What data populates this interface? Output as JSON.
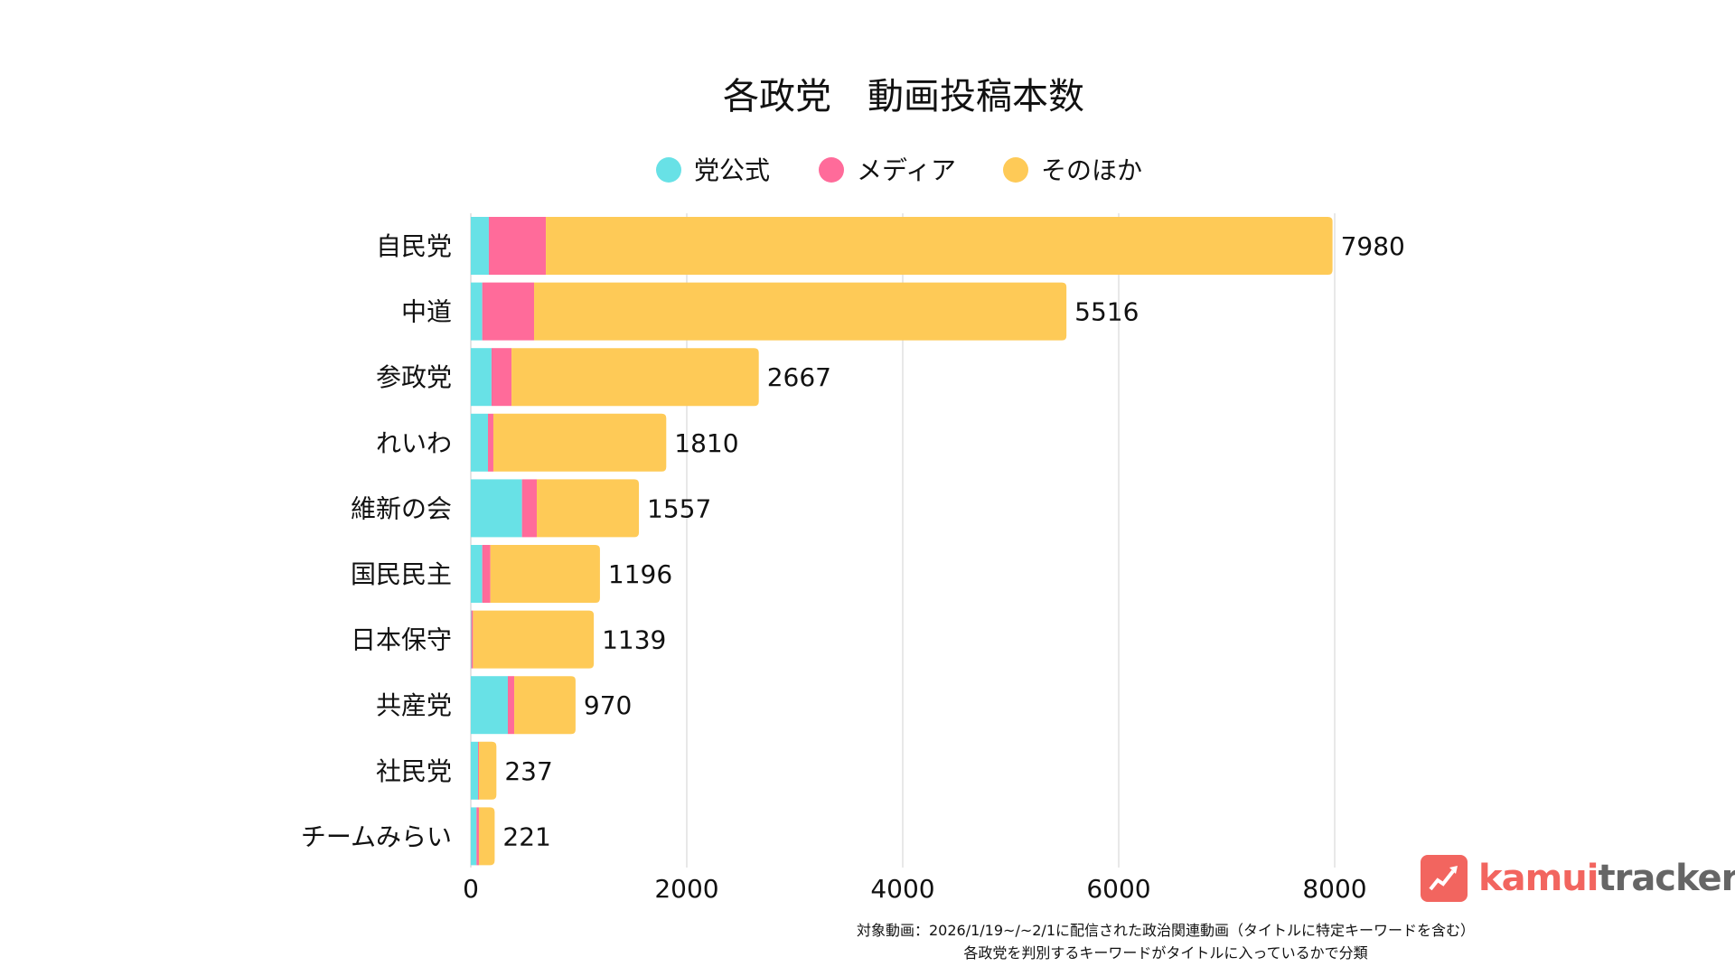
{
  "chart_data": {
    "type": "bar",
    "orientation": "horizontal",
    "stacked": true,
    "title": "各政党　動画投稿本数",
    "xlabel": "",
    "ylabel": "",
    "xlim": [
      0,
      8000
    ],
    "xticks": [
      0,
      2000,
      4000,
      6000,
      8000
    ],
    "grid": true,
    "legend_position": "top",
    "categories": [
      "自民党",
      "中道",
      "参政党",
      "れいわ",
      "維新の会",
      "国民民主",
      "日本保守",
      "共産党",
      "社民党",
      "チームみらい"
    ],
    "totals": [
      7980,
      5516,
      2667,
      1810,
      1557,
      1196,
      1139,
      970,
      237,
      221
    ],
    "series": [
      {
        "name": "党公式",
        "color": "#68E1E6",
        "values": [
          167,
          106,
          192,
          159,
          474,
          106,
          5,
          343,
          67,
          53
        ]
      },
      {
        "name": "メディア",
        "color": "#FF6B9A",
        "values": [
          528,
          480,
          185,
          50,
          137,
          75,
          15,
          59,
          8,
          22
        ]
      },
      {
        "name": "そのほか",
        "color": "#FECA57",
        "values": [
          7285,
          4930,
          2290,
          1601,
          946,
          1015,
          1119,
          568,
          162,
          146
        ]
      }
    ]
  },
  "footnote": {
    "line1": "対象動画：2026/1/19~/~2/1に配信された政治関連動画（タイトルに特定キーワードを含む）",
    "line2": "各政党を判別するキーワードがタイトルに入っているかで分類"
  },
  "logo": {
    "part1": "kamui",
    "part2": "tracker"
  }
}
